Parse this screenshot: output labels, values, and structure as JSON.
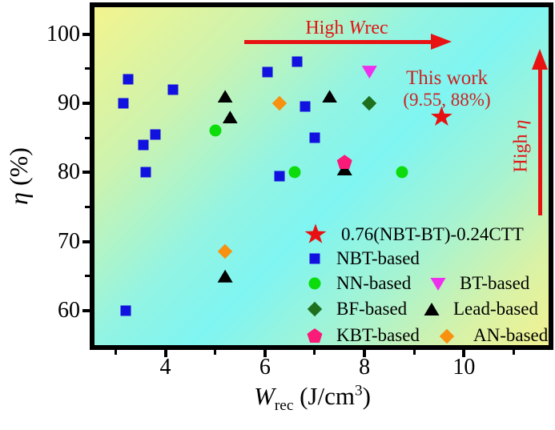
{
  "figure": {
    "ylabel": {
      "symbol": "η",
      "unit": " (%)"
    },
    "xlabel": {
      "symbol": "W",
      "sub": "rec",
      "unit_pre": " (J/cm",
      "sup": "3",
      "unit_post": ")"
    },
    "annotations": {
      "high_wrec": {
        "pre": "High ",
        "sym": "W",
        "rest": "rec"
      },
      "high_eta": {
        "pre": "High ",
        "sym": "η"
      },
      "this_work_line1": "This work",
      "this_work_line2": "(9.55, 88%)"
    },
    "colors": {
      "arrow_red": "#e81212",
      "annotation_red": "#cc2222",
      "background_yellow": "#f3f48e",
      "background_cyan": "#7ff5f2"
    }
  },
  "chart_data": {
    "type": "scatter",
    "title": "",
    "xlabel": "Wrec (J/cm3)",
    "ylabel": "η (%)",
    "xlim": [
      2.575,
      11.7
    ],
    "ylim": [
      55.0,
      103.9
    ],
    "xticks": [
      4,
      6,
      8,
      10
    ],
    "xticks_minor": [
      3,
      5,
      7,
      9,
      11
    ],
    "yticks": [
      60,
      70,
      80,
      90,
      100
    ],
    "yticks_minor": [
      65,
      75,
      85,
      95
    ],
    "grid": false,
    "legend_position": "lower right",
    "series": [
      {
        "name": "0.76(NBT-BT)-0.24CTT",
        "marker": "star",
        "color": "#e81111",
        "points": [
          [
            9.55,
            88
          ]
        ]
      },
      {
        "name": "NBT-based",
        "marker": "square",
        "color": "#1212e0",
        "points": [
          [
            3.25,
            93.5
          ],
          [
            4.15,
            92
          ],
          [
            3.15,
            90
          ],
          [
            3.8,
            85.5
          ],
          [
            3.55,
            84
          ],
          [
            3.6,
            80
          ],
          [
            3.2,
            60
          ],
          [
            6.05,
            94.5
          ],
          [
            6.65,
            96
          ],
          [
            6.8,
            89.5
          ],
          [
            7.0,
            85
          ],
          [
            6.3,
            79.5
          ]
        ]
      },
      {
        "name": "NN-based",
        "marker": "circle",
        "color": "#0cdc0c",
        "points": [
          [
            5.0,
            86
          ],
          [
            6.6,
            80
          ],
          [
            8.75,
            80
          ]
        ]
      },
      {
        "name": "BT-based",
        "marker": "triangle-down",
        "color": "#ef2fee",
        "points": [
          [
            8.1,
            94.5
          ]
        ]
      },
      {
        "name": "BF-based",
        "marker": "diamond",
        "color": "#1e6f1e",
        "points": [
          [
            8.1,
            90
          ]
        ]
      },
      {
        "name": "Lead-based",
        "marker": "triangle-up",
        "color": "#000000",
        "points": [
          [
            5.2,
            91
          ],
          [
            5.3,
            88
          ],
          [
            7.3,
            91
          ],
          [
            7.6,
            80.5
          ],
          [
            5.2,
            65
          ]
        ]
      },
      {
        "name": "KBT-based",
        "marker": "pentagon",
        "color": "#fa1a78",
        "points": [
          [
            7.6,
            81.5
          ]
        ]
      },
      {
        "name": "AN-based",
        "marker": "diamond",
        "color": "#f89010",
        "points": [
          [
            6.3,
            90
          ],
          [
            5.2,
            68.5
          ]
        ]
      }
    ]
  }
}
